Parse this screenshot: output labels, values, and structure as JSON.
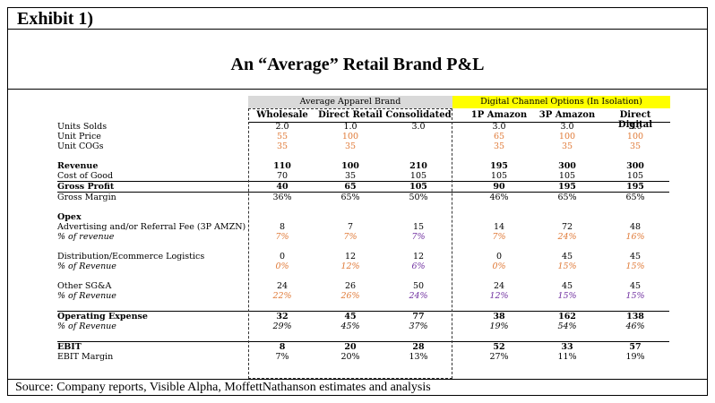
{
  "exhibit_label": "Exhibit 1)",
  "title": "An “Average” Retail Brand P&L",
  "group_headers": {
    "avg": "Average Apparel Brand",
    "digital": "Digital Channel Options (In Isolation)"
  },
  "columns": [
    "Wholesale",
    "Direct Retail",
    "Consolidated",
    "1P Amazon",
    "3P Amazon",
    "Direct Digital"
  ],
  "rows": [
    {
      "label": "Units Solds",
      "values": [
        "2.0",
        "1.0",
        "3.0",
        "3.0",
        "3.0",
        "3.0"
      ]
    },
    {
      "label": "Unit Price",
      "values": [
        "55",
        "100",
        "",
        "65",
        "100",
        "100"
      ]
    },
    {
      "label": "Unit COGs",
      "values": [
        "35",
        "35",
        "",
        "35",
        "35",
        "35"
      ]
    },
    {
      "label": "Revenue",
      "values": [
        "110",
        "100",
        "210",
        "195",
        "300",
        "300"
      ]
    },
    {
      "label": "Cost of Good",
      "values": [
        "70",
        "35",
        "105",
        "105",
        "105",
        "105"
      ]
    },
    {
      "label": "Gross Profit",
      "values": [
        "40",
        "65",
        "105",
        "90",
        "195",
        "195"
      ]
    },
    {
      "label": "Gross Margin",
      "values": [
        "36%",
        "65%",
        "50%",
        "46%",
        "65%",
        "65%"
      ]
    },
    {
      "label": "Opex",
      "values": [
        "",
        "",
        "",
        "",
        "",
        ""
      ]
    },
    {
      "label": "Advertising and/or Referral Fee (3P AMZN)",
      "values": [
        "8",
        "7",
        "15",
        "14",
        "72",
        "48"
      ]
    },
    {
      "label": "% of revenue",
      "values": [
        "7%",
        "7%",
        "7%",
        "7%",
        "24%",
        "16%"
      ]
    },
    {
      "label": "Distribution/Ecommerce Logistics",
      "values": [
        "0",
        "12",
        "12",
        "0",
        "45",
        "45"
      ]
    },
    {
      "label": "% of Revenue",
      "values": [
        "0%",
        "12%",
        "6%",
        "0%",
        "15%",
        "15%"
      ]
    },
    {
      "label": "Other SG&A",
      "values": [
        "24",
        "26",
        "50",
        "24",
        "45",
        "45"
      ]
    },
    {
      "label": "% of Revenue",
      "values": [
        "22%",
        "26%",
        "24%",
        "12%",
        "15%",
        "15%"
      ]
    },
    {
      "label": "Operating Expense",
      "values": [
        "32",
        "45",
        "77",
        "38",
        "162",
        "138"
      ]
    },
    {
      "label": "% of Revenue",
      "values": [
        "29%",
        "45%",
        "37%",
        "19%",
        "54%",
        "46%"
      ]
    },
    {
      "label": "EBIT",
      "values": [
        "8",
        "20",
        "28",
        "52",
        "33",
        "57"
      ]
    },
    {
      "label": "EBIT Margin",
      "values": [
        "7%",
        "20%",
        "13%",
        "27%",
        "11%",
        "19%"
      ]
    }
  ],
  "source": "Source: Company reports, Visible Alpha, MoffettNathanson estimates and analysis"
}
